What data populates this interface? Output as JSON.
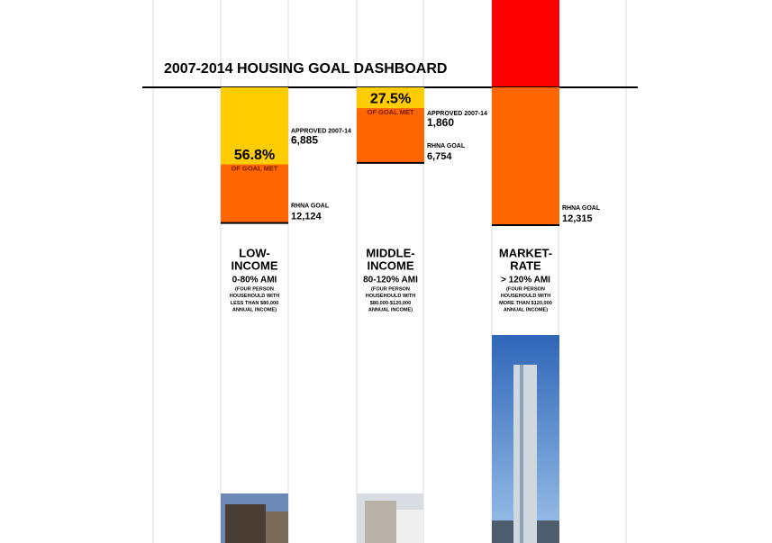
{
  "chart_data": {
    "type": "goal-dashboard",
    "title": "2007-2014 HOUSING GOAL DASHBOARD",
    "approved_caption": "APPROVED 2007-14",
    "goal_caption": "RHNA GOAL",
    "met_caption": "OF GOAL MET",
    "colors": {
      "approved": "#ffcc00",
      "goal": "#ff6600",
      "over": "#ff0000"
    },
    "groups": [
      {
        "name_lines": [
          "LOW-",
          "INCOME"
        ],
        "range": "0-80% AMI",
        "note_lines": [
          "(FOUR PERSON",
          "HOUSEHOULD WITH",
          "LESS THAN $80,000",
          "ANNUAL INCOME)"
        ],
        "approved": 6885,
        "approved_label": "6,885",
        "goal": 12124,
        "goal_label": "12,124",
        "percent": 56.8,
        "percent_label": "56.8%"
      },
      {
        "name_lines": [
          "MIDDLE-",
          "INCOME"
        ],
        "range": "80-120% AMI",
        "note_lines": [
          "(FOUR PERSON",
          "HOUSEHOULD WITH",
          "$80,000-$120,000",
          "ANNUAL INCOME)"
        ],
        "approved": 1860,
        "approved_label": "1,860",
        "goal": 6754,
        "goal_label": "6,754",
        "percent": 27.5,
        "percent_label": "27.5%"
      },
      {
        "name_lines": [
          "MARKET-",
          "RATE"
        ],
        "range": "> 120% AMI",
        "note_lines": [
          "(FOUR PERSON",
          "HOUSEHOULD WITH",
          "MORE THAN $120,000",
          "ANNUAL INCOME)"
        ],
        "goal": 12315,
        "goal_label": "12,315"
      }
    ]
  }
}
